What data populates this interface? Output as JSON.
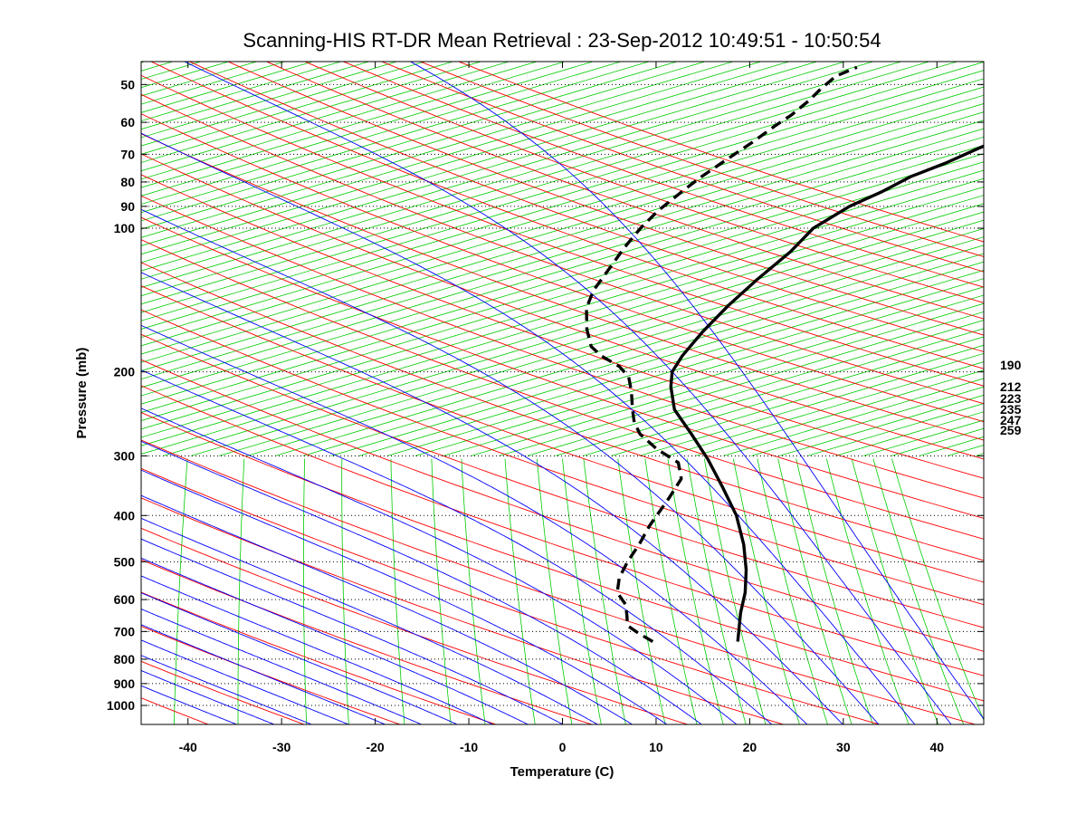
{
  "chart_data": {
    "type": "line",
    "chart_kind": "Skew-T log-P diagram",
    "title": "Scanning-HIS RT-DR Mean Retrieval : 23-Sep-2012 10:49:51 - 10:50:54",
    "xlabel": "Temperature (C)",
    "ylabel": "Pressure (mb)",
    "xlim": [
      -45,
      45
    ],
    "ylim": [
      1100,
      45
    ],
    "y_scale": "log",
    "x_ticks": [
      -40,
      -30,
      -20,
      -10,
      0,
      10,
      20,
      30,
      40
    ],
    "y_ticks": [
      50,
      60,
      70,
      80,
      90,
      100,
      200,
      300,
      400,
      500,
      600,
      700,
      800,
      900,
      1000
    ],
    "grid": "horizontal dotted at each pressure tick",
    "right_annotations": [
      "190",
      "212",
      "223",
      "235",
      "247",
      "259"
    ],
    "colors": {
      "dry_adiabats": "#ff0000",
      "moist_adiabats": "#0000ff",
      "mixing_ratio": "#00cc00",
      "grid": "#000000",
      "temperature": "#000000",
      "dewpoint": "#000000"
    },
    "series": [
      {
        "name": "Temperature",
        "style": "solid",
        "points": [
          [
            15.6,
            735
          ],
          [
            14.5,
            640
          ],
          [
            14.0,
            580
          ],
          [
            13.0,
            520
          ],
          [
            11.5,
            460
          ],
          [
            9.3,
            400
          ],
          [
            6.5,
            350
          ],
          [
            3.5,
            305
          ],
          [
            0.5,
            270
          ],
          [
            -2.5,
            240
          ],
          [
            -4.0,
            215
          ],
          [
            -4.6,
            200
          ],
          [
            -4.3,
            185
          ],
          [
            -3.3,
            165
          ],
          [
            -1.8,
            145
          ],
          [
            0.0,
            128
          ],
          [
            2.2,
            112
          ],
          [
            3.5,
            100
          ],
          [
            6.3,
            90
          ],
          [
            9.0,
            84
          ],
          [
            11.4,
            78
          ],
          [
            14.5,
            73
          ],
          [
            17.3,
            68
          ],
          [
            20.5,
            63
          ],
          [
            23.5,
            58
          ],
          [
            27.5,
            53
          ],
          [
            30.5,
            49
          ],
          [
            33.5,
            46
          ]
        ]
      },
      {
        "name": "Dewpoint",
        "style": "dashed",
        "points": [
          [
            6.5,
            735
          ],
          [
            4.5,
            705
          ],
          [
            3.0,
            680
          ],
          [
            2.5,
            650
          ],
          [
            1.8,
            615
          ],
          [
            0.3,
            580
          ],
          [
            -0.2,
            540
          ],
          [
            -0.1,
            500
          ],
          [
            0.3,
            460
          ],
          [
            0.5,
            420
          ],
          [
            1.2,
            370
          ],
          [
            1.6,
            335
          ],
          [
            0.5,
            310
          ],
          [
            -2.5,
            290
          ],
          [
            -5.0,
            270
          ],
          [
            -6.2,
            255
          ],
          [
            -7.0,
            240
          ],
          [
            -8.0,
            220
          ],
          [
            -9.0,
            205
          ],
          [
            -10.5,
            195
          ],
          [
            -13.0,
            185
          ],
          [
            -14.5,
            177
          ],
          [
            -15.8,
            163
          ],
          [
            -16.9,
            147
          ],
          [
            -17.0,
            135
          ],
          [
            -16.3,
            120
          ],
          [
            -15.8,
            110
          ],
          [
            -15.0,
            100
          ],
          [
            -14.0,
            92
          ],
          [
            -13.0,
            87
          ],
          [
            -12.2,
            83
          ],
          [
            -11.0,
            78
          ],
          [
            -9.2,
            72
          ],
          [
            -7.2,
            66
          ],
          [
            -5.6,
            61
          ],
          [
            -4.4,
            58
          ],
          [
            -3.2,
            54
          ],
          [
            -2.5,
            51
          ],
          [
            -1.5,
            48
          ],
          [
            0.3,
            46
          ]
        ]
      }
    ]
  }
}
